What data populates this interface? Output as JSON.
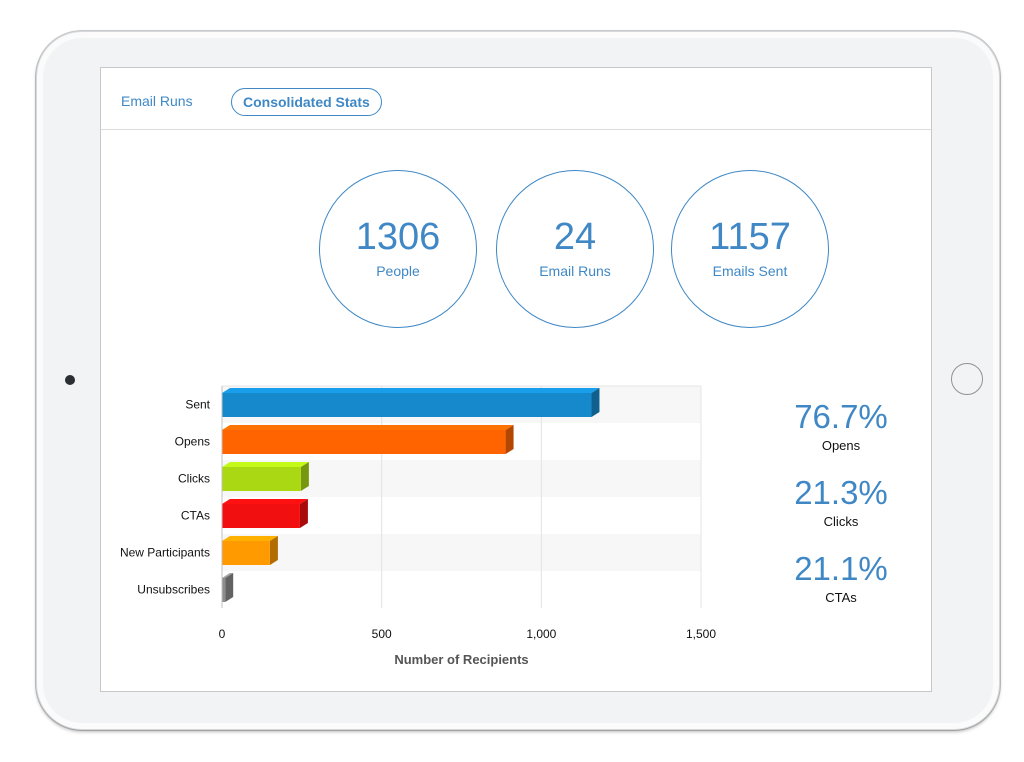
{
  "tabs": [
    {
      "label": "Email Runs"
    },
    {
      "label": "Consolidated Stats"
    }
  ],
  "stats": [
    {
      "value": "1306",
      "label": "People"
    },
    {
      "value": "24",
      "label": "Email Runs"
    },
    {
      "value": "1157",
      "label": "Emails Sent"
    }
  ],
  "percentages": [
    {
      "value": "76.7%",
      "label": "Opens"
    },
    {
      "value": "21.3%",
      "label": "Clicks"
    },
    {
      "value": "21.1%",
      "label": "CTAs"
    }
  ],
  "chart_data": {
    "type": "bar",
    "orientation": "horizontal",
    "categories": [
      "Sent",
      "Opens",
      "Clicks",
      "CTAs",
      "New Participants",
      "Unsubscribes"
    ],
    "values": [
      1157,
      888,
      247,
      244,
      150,
      10
    ],
    "colors": [
      "#1589cc",
      "#ff6400",
      "#aad914",
      "#f20f0f",
      "#ff9a00",
      "#8c8c8c"
    ],
    "xlim": [
      0,
      1500
    ],
    "xticks": [
      "0",
      "500",
      "1,000",
      "1,500"
    ],
    "xtick_values": [
      0,
      500,
      1000,
      1500
    ],
    "xlabel": "Number of Recipients",
    "ylabel": "",
    "title": "",
    "grid": true,
    "bar_style": "3d"
  }
}
